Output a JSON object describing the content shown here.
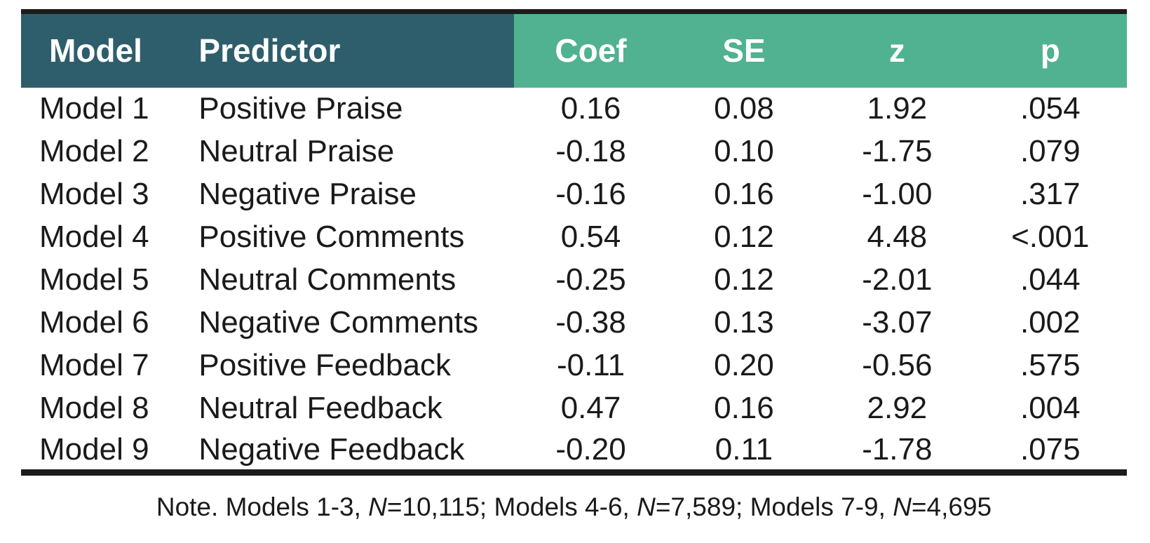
{
  "colors": {
    "header_dark": "#2e5e6b",
    "header_green": "#50b290",
    "header_text": "#ffffff",
    "body_text": "#1a1a1a",
    "rule": "#1c1c1c",
    "background": "#ffffff"
  },
  "chart_data": {
    "type": "table",
    "title": "",
    "columns": [
      "Model",
      "Predictor",
      "Coef",
      "SE",
      "z",
      "p"
    ],
    "column_keys": [
      "model",
      "predictor",
      "coef",
      "se",
      "z",
      "p"
    ],
    "header_groups": [
      {
        "name": "identifiers",
        "columns": [
          "Model",
          "Predictor"
        ],
        "color": "#2e5e6b"
      },
      {
        "name": "statistics",
        "columns": [
          "Coef",
          "SE",
          "z",
          "p"
        ],
        "color": "#50b290"
      }
    ],
    "rows": [
      [
        "Model 1",
        "Positive Praise",
        "0.16",
        "0.08",
        "1.92",
        ".054"
      ],
      [
        "Model 2",
        "Neutral Praise",
        "-0.18",
        "0.10",
        "-1.75",
        ".079"
      ],
      [
        "Model 3",
        "Negative Praise",
        "-0.16",
        "0.16",
        "-1.00",
        ".317"
      ],
      [
        "Model 4",
        "Positive Comments",
        "0.54",
        "0.12",
        "4.48",
        "<.001"
      ],
      [
        "Model 5",
        "Neutral Comments",
        "-0.25",
        "0.12",
        "-2.01",
        ".044"
      ],
      [
        "Model 6",
        "Negative Comments",
        "-0.38",
        "0.13",
        "-3.07",
        ".002"
      ],
      [
        "Model 7",
        "Positive Feedback",
        "-0.11",
        "0.20",
        "-0.56",
        ".575"
      ],
      [
        "Model 8",
        "Neutral Feedback",
        "0.47",
        "0.16",
        "2.92",
        ".004"
      ],
      [
        "Model 9",
        "Negative Feedback",
        "-0.20",
        "0.11",
        "-1.78",
        ".075"
      ]
    ],
    "note": "Note. Models 1-3, N=10,115; Models 4-6, N=7,589; Models 7-9, N=4,695",
    "grid": false,
    "legend_position": "none"
  },
  "note_segments": [
    {
      "t": "Note. Models 1-3, ",
      "i": false
    },
    {
      "t": "N",
      "i": true
    },
    {
      "t": "=10,115; Models 4-6, ",
      "i": false
    },
    {
      "t": "N",
      "i": true
    },
    {
      "t": "=7,589; Models 7-9, ",
      "i": false
    },
    {
      "t": "N",
      "i": true
    },
    {
      "t": "=4,695",
      "i": false
    }
  ]
}
